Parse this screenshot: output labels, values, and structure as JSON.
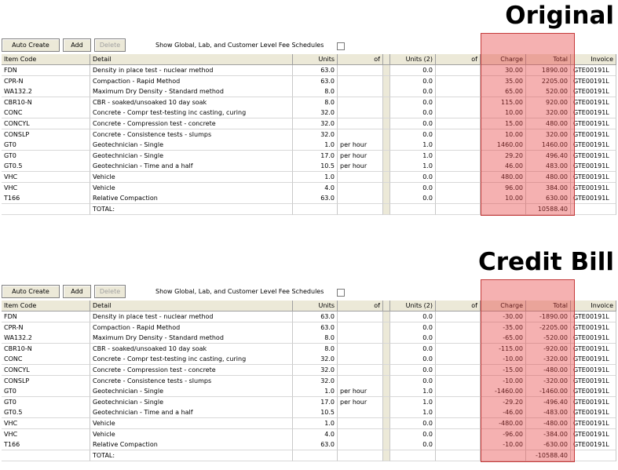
{
  "panels": [
    {
      "heading": "Original",
      "buttons": [
        "Auto Create",
        "Add",
        "Delete"
      ],
      "checkbox_label": "Show Global, Lab, and Customer Level Fee Schedules",
      "columns": [
        "Item Code",
        "Detail",
        "Units",
        "of",
        "Units (2)",
        "of",
        "Charge",
        "Total",
        "Invoice"
      ],
      "rows": [
        {
          "code": "FDN",
          "detail": "Density in place test - nuclear method",
          "units": "63.0",
          "units2": "0.0",
          "charge": "30.00",
          "total": "1890.00",
          "invoice": "GTE00191L"
        },
        {
          "code": "CPR-N",
          "detail": "Compaction - Rapid Method",
          "units": "63.0",
          "units2": "0.0",
          "charge": "35.00",
          "total": "2205.00",
          "invoice": "GTE00191L"
        },
        {
          "code": "WA132.2",
          "detail": "Maximum Dry Density - Standard method",
          "units": "8.0",
          "units2": "0.0",
          "charge": "65.00",
          "total": "520.00",
          "invoice": "GTE00191L"
        },
        {
          "code": "CBR10-N",
          "detail": "CBR - soaked/unsoaked 10 day soak",
          "units": "8.0",
          "units2": "0.0",
          "charge": "115.00",
          "total": "920.00",
          "invoice": "GTE00191L"
        },
        {
          "code": "CONC",
          "detail": "Concrete - Compr test-testing inc casting, curing",
          "units": "32.0",
          "units2": "0.0",
          "charge": "10.00",
          "total": "320.00",
          "invoice": "GTE00191L"
        },
        {
          "code": "CONCYL",
          "detail": "Concrete - Compression test - concrete",
          "units": "32.0",
          "units2": "0.0",
          "charge": "15.00",
          "total": "480.00",
          "invoice": "GTE00191L"
        },
        {
          "code": "CONSLP",
          "detail": "Concrete - Consistence tests - slumps",
          "units": "32.0",
          "units2": "0.0",
          "charge": "10.00",
          "total": "320.00",
          "invoice": "GTE00191L"
        },
        {
          "code": "GT0",
          "detail": "Geotechnician - Single",
          "units": "1.0",
          "of": "per hour",
          "units2": "1.0",
          "charge": "1460.00",
          "total": "1460.00",
          "invoice": "GTE00191L"
        },
        {
          "code": "GT0",
          "detail": "Geotechnician - Single",
          "units": "17.0",
          "of": "per hour",
          "units2": "1.0",
          "charge": "29.20",
          "total": "496.40",
          "invoice": "GTE00191L"
        },
        {
          "code": "GT0.5",
          "detail": "Geotechnician - Time and a half",
          "units": "10.5",
          "of": "per hour",
          "units2": "1.0",
          "charge": "46.00",
          "total": "483.00",
          "invoice": "GTE00191L"
        },
        {
          "code": "VHC",
          "detail": "Vehicle",
          "units": "1.0",
          "units2": "0.0",
          "charge": "480.00",
          "total": "480.00",
          "invoice": "GTE00191L"
        },
        {
          "code": "VHC",
          "detail": "Vehicle",
          "units": "4.0",
          "units2": "0.0",
          "charge": "96.00",
          "total": "384.00",
          "invoice": "GTE00191L"
        },
        {
          "code": "T166",
          "detail": "Relative Compaction",
          "units": "63.0",
          "units2": "0.0",
          "charge": "10.00",
          "total": "630.00",
          "invoice": "GTE00191L"
        }
      ],
      "total_label": "TOTAL:",
      "total_value": "10588.40"
    },
    {
      "heading": "Credit Bill",
      "buttons": [
        "Auto Create",
        "Add",
        "Delete"
      ],
      "checkbox_label": "Show Global, Lab, and Customer Level Fee Schedules",
      "columns": [
        "Item Code",
        "Detail",
        "Units",
        "of",
        "Units (2)",
        "of",
        "Charge",
        "Total",
        "Invoice"
      ],
      "rows": [
        {
          "code": "FDN",
          "detail": "Density in place test - nuclear method",
          "units": "63.0",
          "units2": "0.0",
          "charge": "-30.00",
          "total": "-1890.00",
          "invoice": "GTE00191L"
        },
        {
          "code": "CPR-N",
          "detail": "Compaction - Rapid Method",
          "units": "63.0",
          "units2": "0.0",
          "charge": "-35.00",
          "total": "-2205.00",
          "invoice": "GTE00191L"
        },
        {
          "code": "WA132.2",
          "detail": "Maximum Dry Density - Standard method",
          "units": "8.0",
          "units2": "0.0",
          "charge": "-65.00",
          "total": "-520.00",
          "invoice": "GTE00191L"
        },
        {
          "code": "CBR10-N",
          "detail": "CBR - soaked/unsoaked 10 day soak",
          "units": "8.0",
          "units2": "0.0",
          "charge": "-115.00",
          "total": "-920.00",
          "invoice": "GTE00191L"
        },
        {
          "code": "CONC",
          "detail": "Concrete - Compr test-testing inc casting, curing",
          "units": "32.0",
          "units2": "0.0",
          "charge": "-10.00",
          "total": "-320.00",
          "invoice": "GTE00191L"
        },
        {
          "code": "CONCYL",
          "detail": "Concrete - Compression test - concrete",
          "units": "32.0",
          "units2": "0.0",
          "charge": "-15.00",
          "total": "-480.00",
          "invoice": "GTE00191L"
        },
        {
          "code": "CONSLP",
          "detail": "Concrete - Consistence tests - slumps",
          "units": "32.0",
          "units2": "0.0",
          "charge": "-10.00",
          "total": "-320.00",
          "invoice": "GTE00191L"
        },
        {
          "code": "GT0",
          "detail": "Geotechnician - Single",
          "units": "1.0",
          "of": "per hour",
          "units2": "1.0",
          "charge": "-1460.00",
          "total": "-1460.00",
          "invoice": "GTE00191L"
        },
        {
          "code": "GT0",
          "detail": "Geotechnician - Single",
          "units": "17.0",
          "of": "per hour",
          "units2": "1.0",
          "charge": "-29.20",
          "total": "-496.40",
          "invoice": "GTE00191L"
        },
        {
          "code": "GT0.5",
          "detail": "Geotechnician - Time and a half",
          "units": "10.5",
          "units2": "1.0",
          "charge": "-46.00",
          "total": "-483.00",
          "invoice": "GTE00191L"
        },
        {
          "code": "VHC",
          "detail": "Vehicle",
          "units": "1.0",
          "units2": "0.0",
          "charge": "-480.00",
          "total": "-480.00",
          "invoice": "GTE00191L"
        },
        {
          "code": "VHC",
          "detail": "Vehicle",
          "units": "4.0",
          "units2": "0.0",
          "charge": "-96.00",
          "total": "-384.00",
          "invoice": "GTE00191L"
        },
        {
          "code": "T166",
          "detail": "Relative Compaction",
          "units": "63.0",
          "units2": "0.0",
          "charge": "-10.00",
          "total": "-630.00",
          "invoice": "GTE00191L"
        }
      ],
      "total_label": "TOTAL:",
      "total_value": "-10588.40"
    }
  ]
}
